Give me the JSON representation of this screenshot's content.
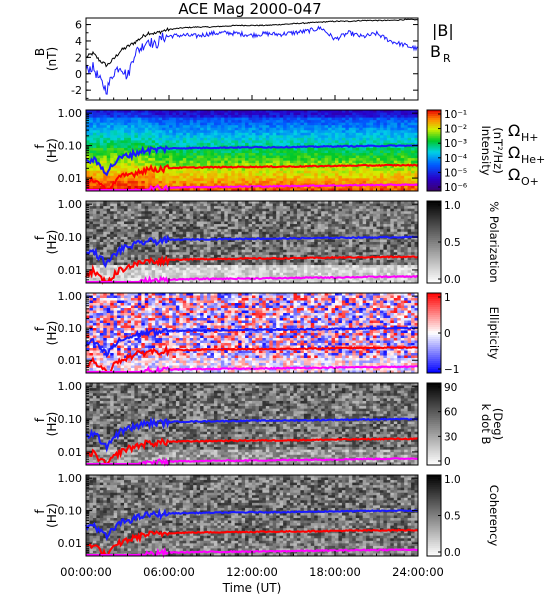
{
  "title": "ACE Mag 2000-047",
  "colors": {
    "bmag": "#000000",
    "br": "#1a1aff",
    "h_plus": "#1a1aff",
    "he_plus": "#ff0000",
    "o_plus": "#ff00ff",
    "axis": "#000000"
  },
  "chart_data": {
    "time_axis": {
      "xlabel": "Time (UT)",
      "tick_labels": [
        "00:00:00",
        "06:00:00",
        "12:00:00",
        "18:00:00",
        "24:00:00"
      ],
      "tick_hours": [
        0,
        6,
        12,
        18,
        24
      ],
      "minor_step_hours": 1,
      "range_hours": [
        0,
        24
      ]
    },
    "line_panel": {
      "type": "line",
      "ylabel_main": "B",
      "ylabel_unit": "(nT)",
      "ylim": [
        -3.2,
        6.8
      ],
      "y_ticks": [
        -2,
        0,
        2,
        4,
        6
      ],
      "legend_bmag": "|B|",
      "legend_br_main": "B",
      "legend_br_sub": "R",
      "series": [
        {
          "key": "bmag",
          "legend": "|B|",
          "x": [
            0,
            0.5,
            1,
            1.5,
            2,
            2.5,
            3,
            3.5,
            4,
            4.5,
            5,
            5.5,
            6,
            7,
            8,
            9,
            10,
            11,
            12,
            13,
            14,
            15,
            16,
            17,
            18,
            19,
            20,
            21,
            22,
            23,
            24
          ],
          "y": [
            2.0,
            2.5,
            1.6,
            1.0,
            1.8,
            2.8,
            3.3,
            3.8,
            4.4,
            5.0,
            4.9,
            5.2,
            5.4,
            5.6,
            5.7,
            5.7,
            5.8,
            5.9,
            5.9,
            5.9,
            6.0,
            6.1,
            6.2,
            6.3,
            6.4,
            6.4,
            6.5,
            6.5,
            6.5,
            6.6,
            6.6
          ]
        },
        {
          "key": "br",
          "legend": "B_R",
          "x": [
            0,
            0.5,
            1,
            1.5,
            2,
            2.5,
            3,
            3.5,
            4,
            4.5,
            5,
            5.5,
            6,
            7,
            8,
            9,
            10,
            11,
            12,
            13,
            14,
            15,
            16,
            17,
            18,
            19,
            20,
            21,
            22,
            23,
            24
          ],
          "y": [
            0.5,
            0.8,
            -0.8,
            -2.0,
            0.2,
            1.0,
            -0.4,
            2.5,
            3.2,
            4.2,
            3.4,
            4.4,
            4.6,
            4.7,
            4.6,
            4.9,
            5.0,
            4.9,
            4.7,
            4.9,
            4.8,
            5.0,
            5.2,
            5.6,
            4.2,
            5.0,
            4.5,
            4.9,
            4.0,
            3.5,
            3.0
          ]
        }
      ]
    },
    "spectrogram_panels": [
      {
        "key": "intensity",
        "type": "heatmap",
        "colorbar": "rainbow",
        "colorbar_label_main": "Intensity",
        "colorbar_label_unit": "(nT²/Hz)",
        "colorbar_ticks": [
          "10⁻¹",
          "10⁻²",
          "10⁻³",
          "10⁻⁴",
          "10⁻⁵",
          "10⁻⁶"
        ]
      },
      {
        "key": "polarization",
        "type": "heatmap",
        "colorbar": "gray",
        "colorbar_label_main": "% Polarization",
        "colorbar_label_unit": "",
        "colorbar_ticks": [
          "1.0",
          "0.5",
          "0.0"
        ]
      },
      {
        "key": "ellipticity",
        "type": "heatmap",
        "colorbar": "bwr",
        "colorbar_label_main": "Ellipticity",
        "colorbar_label_unit": "",
        "colorbar_ticks": [
          "1",
          "0",
          "−1"
        ]
      },
      {
        "key": "kdotb",
        "type": "heatmap",
        "colorbar": "gray",
        "colorbar_label_main": "k dot B",
        "colorbar_label_unit": "(Deg)",
        "colorbar_ticks": [
          "90",
          "60",
          "30",
          "0"
        ]
      },
      {
        "key": "coherency",
        "type": "heatmap",
        "colorbar": "gray",
        "colorbar_label_main": "Coherency",
        "colorbar_label_unit": "",
        "colorbar_ticks": [
          "1.0",
          "0.5",
          "0.0"
        ]
      }
    ],
    "frequency_axis": {
      "ylabel_main": "f",
      "ylabel_unit": "(Hz)",
      "scale": "log",
      "ylim": [
        0.004,
        1.25
      ],
      "tick_labels": [
        "1.00",
        "0.10",
        "0.01"
      ],
      "tick_values": [
        1.0,
        0.1,
        0.01
      ]
    },
    "gyrofrequency_lines": [
      {
        "key": "h_plus",
        "legend_main": "Ω",
        "legend_sub": "H+",
        "x": [
          0,
          0.5,
          1,
          1.5,
          2,
          2.5,
          3,
          3.5,
          4,
          4.5,
          5,
          5.5,
          6,
          8,
          10,
          12,
          14,
          16,
          18,
          20,
          22,
          24
        ],
        "y": [
          0.03,
          0.038,
          0.024,
          0.015,
          0.027,
          0.042,
          0.05,
          0.058,
          0.067,
          0.076,
          0.075,
          0.079,
          0.082,
          0.085,
          0.087,
          0.089,
          0.09,
          0.092,
          0.095,
          0.097,
          0.099,
          0.1
        ]
      },
      {
        "key": "he_plus",
        "legend_main": "Ω",
        "legend_sub": "He+",
        "x": [
          0,
          0.5,
          1,
          1.5,
          2,
          2.5,
          3,
          3.5,
          4,
          4.5,
          5,
          5.5,
          6,
          8,
          10,
          12,
          14,
          16,
          18,
          20,
          22,
          24
        ],
        "y": [
          0.0075,
          0.0095,
          0.006,
          0.0038,
          0.0068,
          0.0105,
          0.0125,
          0.0145,
          0.0168,
          0.019,
          0.0188,
          0.0198,
          0.0205,
          0.0212,
          0.0218,
          0.0222,
          0.0225,
          0.023,
          0.0238,
          0.0243,
          0.0248,
          0.025
        ]
      },
      {
        "key": "o_plus",
        "legend_main": "Ω",
        "legend_sub": "O+",
        "x": [
          0,
          0.5,
          1,
          1.5,
          2,
          2.5,
          3,
          3.5,
          4,
          4.5,
          5,
          5.5,
          6,
          8,
          10,
          12,
          14,
          16,
          18,
          20,
          22,
          24
        ],
        "y": [
          0.0019,
          0.0024,
          0.0015,
          0.001,
          0.0017,
          0.0026,
          0.0031,
          0.0036,
          0.0042,
          0.0047,
          0.0047,
          0.0049,
          0.0051,
          0.0053,
          0.0054,
          0.0055,
          0.0056,
          0.0058,
          0.0059,
          0.0061,
          0.0062,
          0.0063
        ]
      }
    ]
  }
}
